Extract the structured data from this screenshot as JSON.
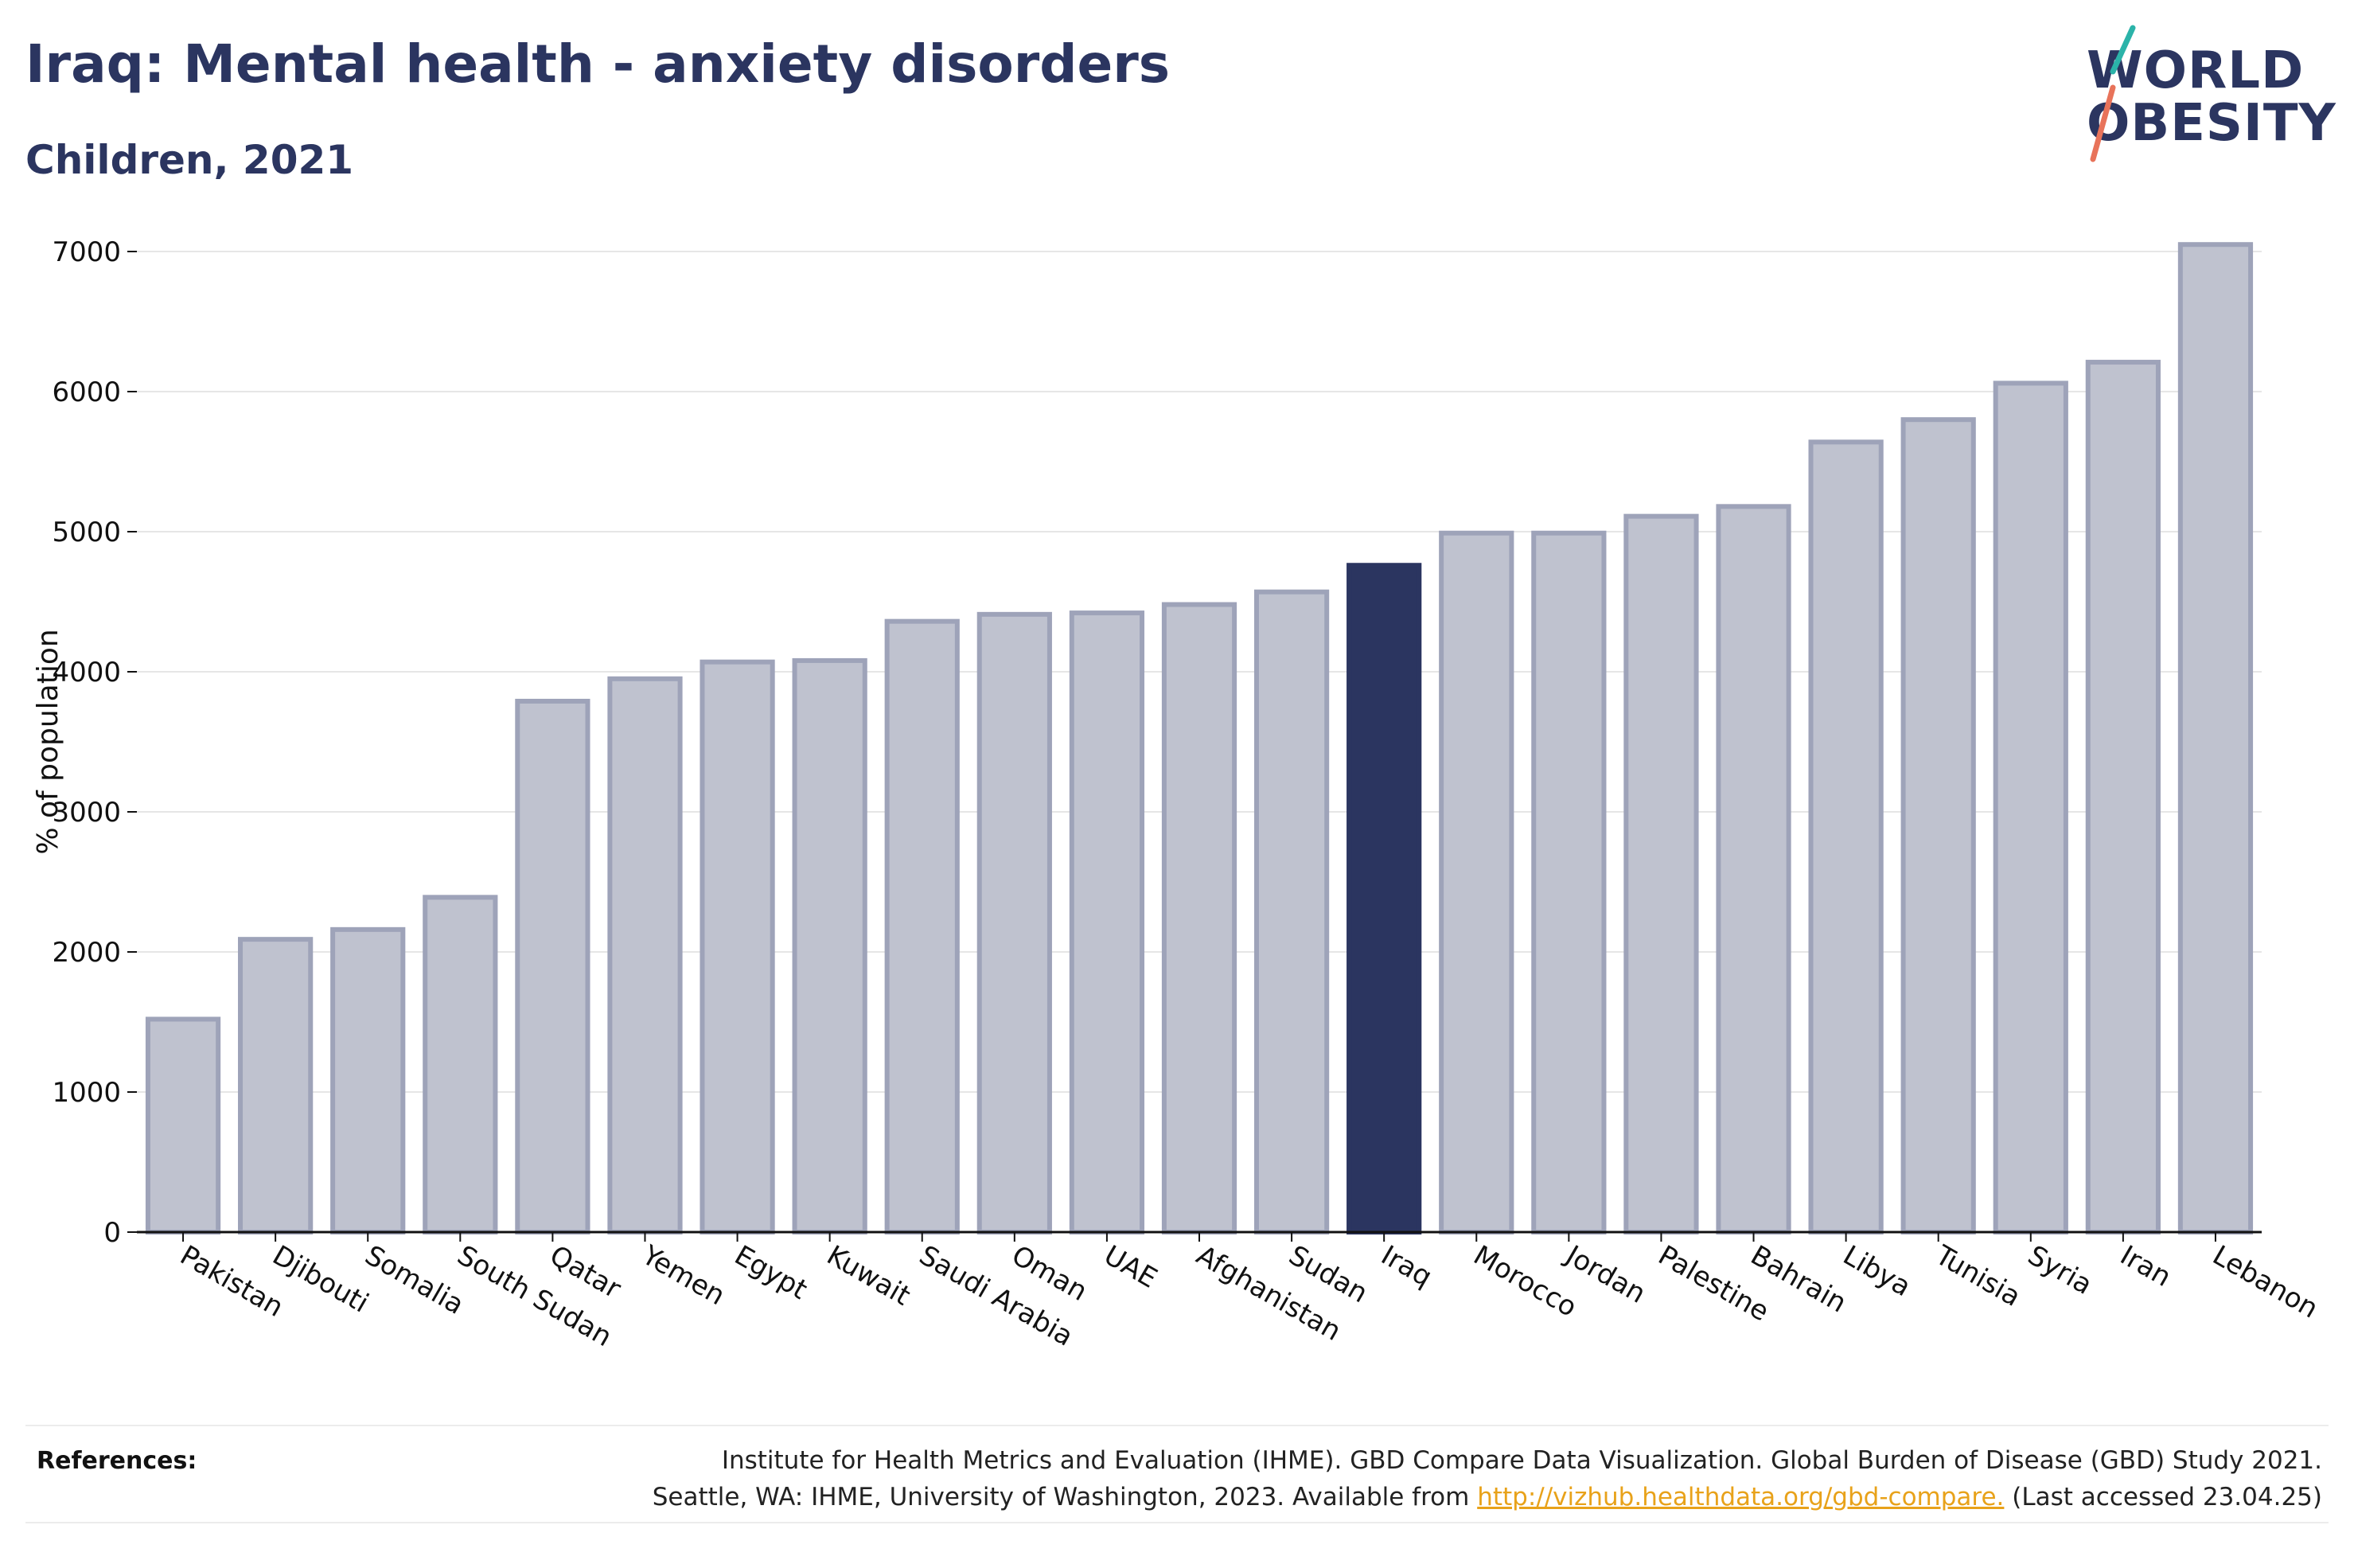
{
  "header": {
    "title": "Iraq: Mental health - anxiety disorders",
    "subtitle": "Children, 2021"
  },
  "logo": {
    "line1": "WORLD",
    "line2": "OBESITY",
    "colors": {
      "text": "#2b3560",
      "slash_top": "#2bb3a9",
      "slash_bottom": "#e8735a"
    }
  },
  "chart_data": {
    "type": "bar",
    "title": "",
    "xlabel": "",
    "ylabel": "% of population",
    "ylim": [
      0,
      7000
    ],
    "yticks": [
      0,
      1000,
      2000,
      3000,
      4000,
      5000,
      6000,
      7000
    ],
    "grid": true,
    "highlight": "Iraq",
    "colors": {
      "bar": "#bfc2cf",
      "bar_edge": "#9ea3b9",
      "highlight": "#2b3560"
    },
    "categories": [
      "Pakistan",
      "Djibouti",
      "Somalia",
      "South Sudan",
      "Qatar",
      "Yemen",
      "Egypt",
      "Kuwait",
      "Saudi Arabia",
      "Oman",
      "UAE",
      "Afghanistan",
      "Sudan",
      "Iraq",
      "Morocco",
      "Jordan",
      "Palestine",
      "Bahrain",
      "Libya",
      "Tunisia",
      "Syria",
      "Iran",
      "Lebanon"
    ],
    "values": [
      1520,
      2090,
      2160,
      2390,
      3790,
      3950,
      4070,
      4080,
      4360,
      4410,
      4420,
      4480,
      4570,
      4760,
      4990,
      4990,
      5110,
      5180,
      5640,
      5800,
      6060,
      6210,
      7050
    ]
  },
  "references": {
    "label": "References:",
    "line1": "Institute for Health Metrics and Evaluation (IHME). GBD Compare Data Visualization. Global Burden of Disease (GBD) Study 2021.",
    "line2_pre": "Seattle, WA: IHME, University of Washington, 2023. Available from ",
    "link": "http://vizhub.healthdata.org/gbd-compare.",
    "line2_post": " (Last accessed 23.04.25)"
  }
}
